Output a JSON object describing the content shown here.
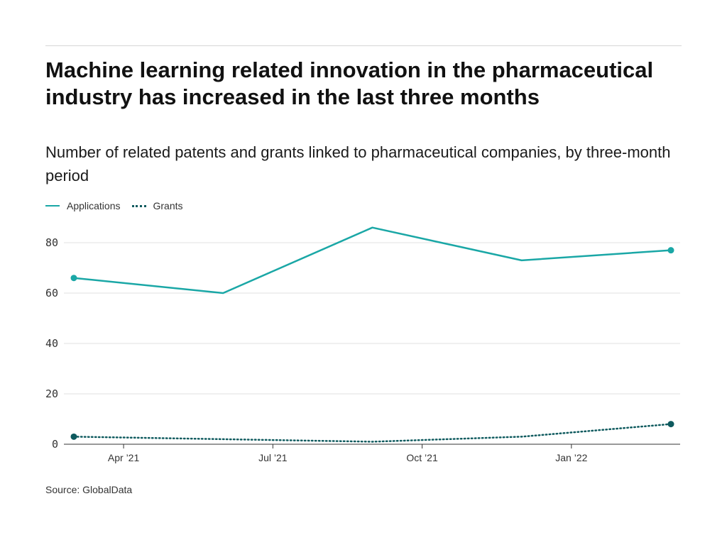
{
  "title": "Machine learning related innovation in the pharmaceutical industry has increased in the last three months",
  "subtitle": "Number of related patents and grants linked to pharmaceutical companies, by three-month period",
  "source": "Source: GlobalData",
  "legend": [
    {
      "name": "Applications",
      "style": "solid",
      "color": "#1aa7a6"
    },
    {
      "name": "Grants",
      "style": "dotted",
      "color": "#0e5a5e"
    }
  ],
  "chart_data": {
    "type": "line",
    "title": "Machine learning related innovation in the pharmaceutical industry has increased in the last three months",
    "subtitle": "Number of related patents and grants linked to pharmaceutical companies, by three-month period",
    "x": [
      "2021-03",
      "2021-06",
      "2021-09",
      "2021-12",
      "2022-03"
    ],
    "x_tick_labels": [
      "Apr ’21",
      "Jul ’21",
      "Oct ’21",
      "Jan ’22"
    ],
    "x_tick_positions": [
      "2021-04",
      "2021-07",
      "2021-10",
      "2022-01"
    ],
    "y_ticks": [
      0,
      20,
      40,
      60,
      80
    ],
    "ylim": [
      0,
      90
    ],
    "grid": true,
    "legend_position": "top-left",
    "series": [
      {
        "name": "Applications",
        "values": [
          66,
          60,
          86,
          73,
          77
        ],
        "color": "#1aa7a6",
        "style": "solid"
      },
      {
        "name": "Grants",
        "values": [
          3,
          2,
          1,
          3,
          8
        ],
        "color": "#0e5a5e",
        "style": "dotted"
      }
    ],
    "xlabel": "",
    "ylabel": ""
  }
}
